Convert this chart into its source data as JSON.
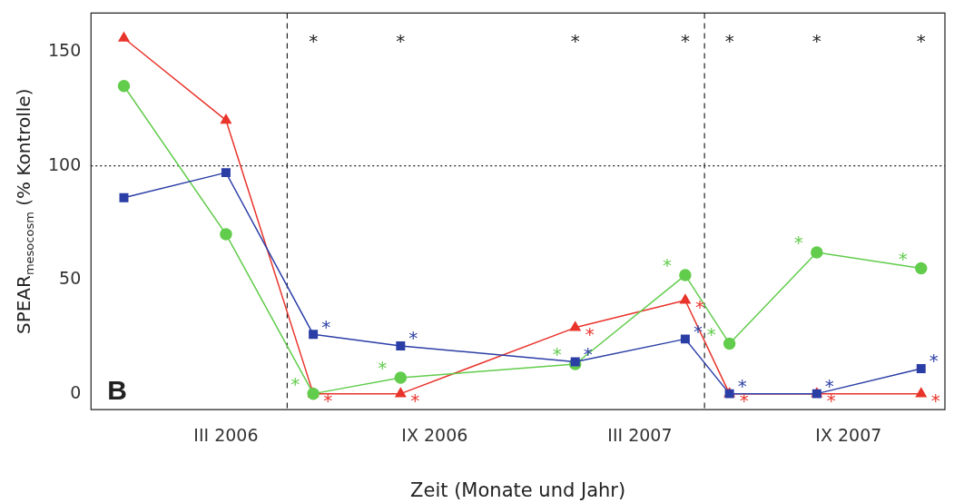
{
  "chart_data": {
    "type": "line",
    "xlabel": "Zeit (Monate und Jahr)",
    "ylabel": "SPEAR$_{mesocosm}$ (% Kontrolle)",
    "x": [
      "2005-12-01",
      "2006-03-01",
      "2006-05-17",
      "2006-08-02",
      "2007-01-03",
      "2007-04-10",
      "2007-05-19",
      "2007-08-04",
      "2007-11-04"
    ],
    "xlim": [
      "2005-11-02",
      "2007-11-25"
    ],
    "xticks": [
      {
        "value": "2006-03-01",
        "label": "III 2006"
      },
      {
        "value": "2006-09-01",
        "label": "IX 2006"
      },
      {
        "value": "2007-03-01",
        "label": "III 2007"
      },
      {
        "value": "2007-09-01",
        "label": "IX 2007"
      }
    ],
    "ylim": [
      -7,
      167
    ],
    "yticks": [
      0,
      50,
      100,
      150
    ],
    "grid": false,
    "legend": false,
    "series": [
      {
        "color": "#2b3ea6",
        "marker": "square",
        "values": [
          86,
          97,
          26,
          21,
          14,
          24,
          0,
          0,
          11
        ],
        "value_labels": [
          null,
          null,
          "*",
          "*",
          "*",
          "*",
          "*",
          "*",
          "*"
        ]
      },
      {
        "color": "#62cc4c",
        "marker": "circle",
        "values": [
          135,
          70,
          0,
          7,
          13,
          52,
          22,
          62,
          55
        ],
        "value_labels": [
          null,
          null,
          "*",
          "*",
          "*",
          "*",
          "*",
          "*",
          "*"
        ]
      },
      {
        "color": "#e8342b",
        "marker": "triangle",
        "values": [
          156,
          120,
          0,
          0,
          29,
          41,
          0,
          0,
          0
        ],
        "value_labels": [
          null,
          null,
          "*",
          "*",
          "*",
          "*",
          "*",
          "*",
          "*"
        ]
      }
    ],
    "ref_lines": [
      {
        "axis": "y",
        "value": 100,
        "line_style": "dotted"
      },
      {
        "axis": "x",
        "value": "2006-04-24",
        "line_style": "dashed"
      },
      {
        "axis": "x",
        "value": "2007-04-27",
        "line_style": "dashed"
      }
    ],
    "value_labels": [
      null,
      null,
      "*",
      "*",
      "*",
      "*",
      "*",
      "*",
      "*"
    ],
    "annotations": [
      "B"
    ]
  }
}
